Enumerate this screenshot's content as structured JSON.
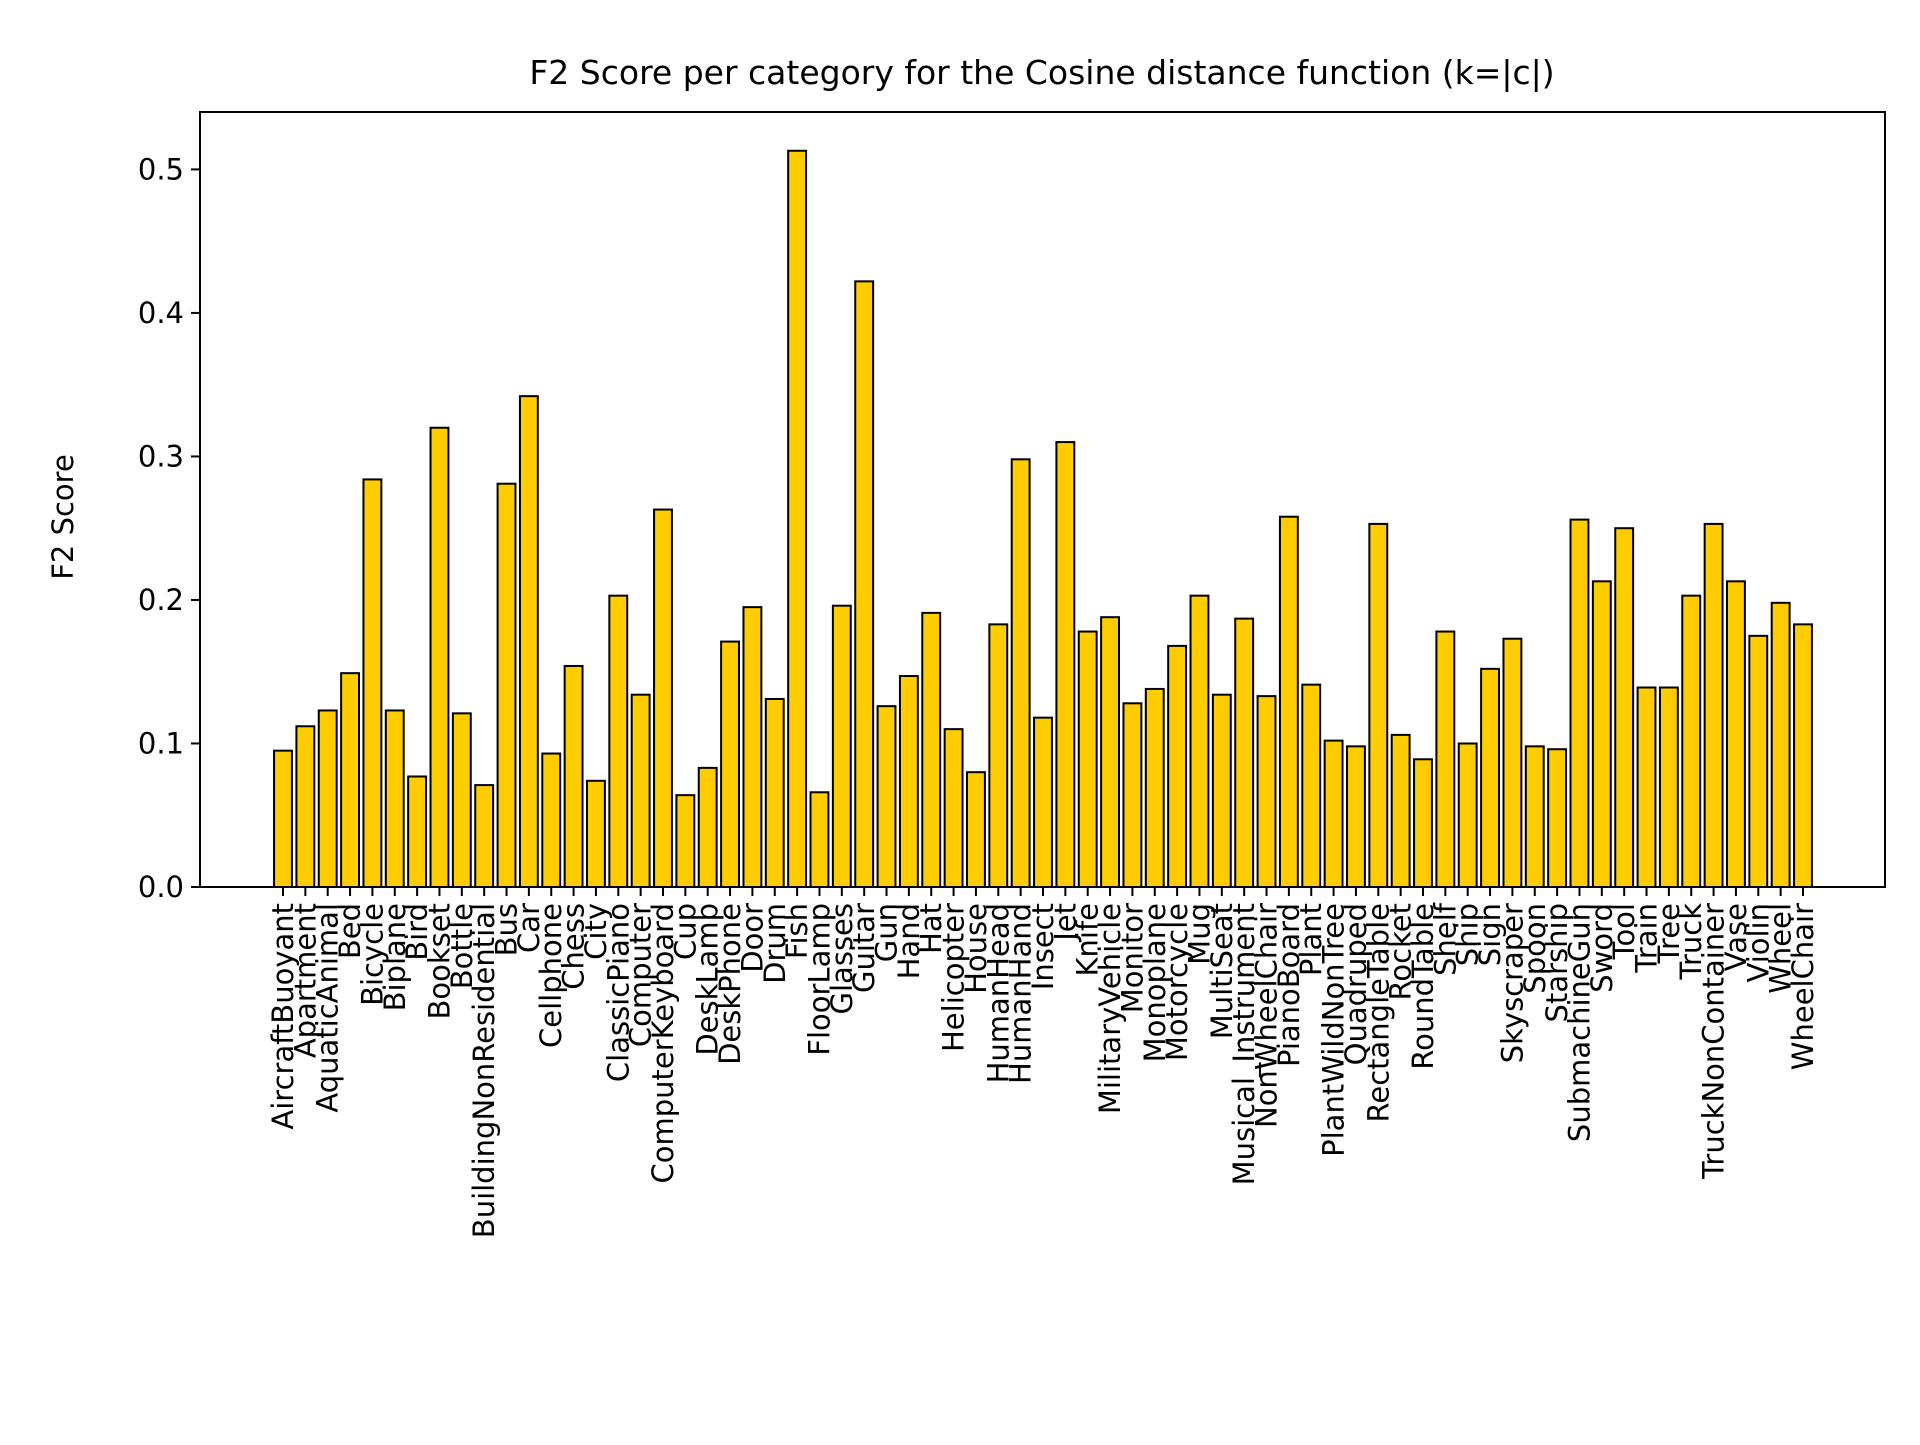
{
  "chart_data": {
    "type": "bar",
    "title": "F2 Score per category for the Cosine distance function (k=|c|)",
    "xlabel": "",
    "ylabel": "F2 Score",
    "ylim": [
      0,
      0.54
    ],
    "yticks": [
      0.0,
      0.1,
      0.2,
      0.3,
      0.4,
      0.5
    ],
    "ytick_labels": [
      "0.0",
      "0.1",
      "0.2",
      "0.3",
      "0.4",
      "0.5"
    ],
    "grid": false,
    "legend": "none",
    "bar_color": "#FFCC00",
    "bar_edge_color": "#000000",
    "categories": [
      "AircraftBuoyant",
      "Apartment",
      "AquaticAnimal",
      "Bed",
      "Bicycle",
      "Biplane",
      "Bird",
      "Bookset",
      "Bottle",
      "BuildingNonResidential",
      "Bus",
      "Car",
      "Cellphone",
      "Chess",
      "City",
      "ClassicPiano",
      "Computer",
      "ComputerKeyboard",
      "Cup",
      "DeskLamp",
      "DeskPhone",
      "Door",
      "Drum",
      "Fish",
      "FloorLamp",
      "Glasses",
      "Guitar",
      "Gun",
      "Hand",
      "Hat",
      "Helicopter",
      "House",
      "HumanHead",
      "HumanHand",
      "Insect",
      "Jet",
      "Knife",
      "MilitaryVehicle",
      "Monitor",
      "Monoplane",
      "Motorcycle",
      "Mug",
      "MultiSeat",
      "Musical_Instrument",
      "NonWheelChair",
      "PianoBoard",
      "Plant",
      "PlantWildNonTree",
      "Quadruped",
      "RectangleTable",
      "Rocket",
      "RoundTable",
      "Shelf",
      "Ship",
      "Sign",
      "Skyscraper",
      "Spoon",
      "Starship",
      "SubmachineGun",
      "Sword",
      "Tool",
      "Train",
      "Tree",
      "Truck",
      "TruckNonContainer",
      "Vase",
      "Violin",
      "Wheel",
      "WheelChair"
    ],
    "values": [
      0.095,
      0.112,
      0.123,
      0.149,
      0.284,
      0.123,
      0.077,
      0.32,
      0.121,
      0.071,
      0.281,
      0.342,
      0.093,
      0.154,
      0.074,
      0.203,
      0.134,
      0.263,
      0.064,
      0.083,
      0.171,
      0.195,
      0.131,
      0.513,
      0.066,
      0.196,
      0.422,
      0.126,
      0.147,
      0.191,
      0.11,
      0.08,
      0.183,
      0.298,
      0.118,
      0.31,
      0.178,
      0.188,
      0.128,
      0.138,
      0.168,
      0.203,
      0.134,
      0.187,
      0.133,
      0.258,
      0.141,
      0.102,
      0.098,
      0.253,
      0.106,
      0.089,
      0.178,
      0.1,
      0.152,
      0.173,
      0.098,
      0.096,
      0.256,
      0.213,
      0.25,
      0.139,
      0.139,
      0.203,
      0.253,
      0.213,
      0.175,
      0.198,
      0.183
    ]
  }
}
